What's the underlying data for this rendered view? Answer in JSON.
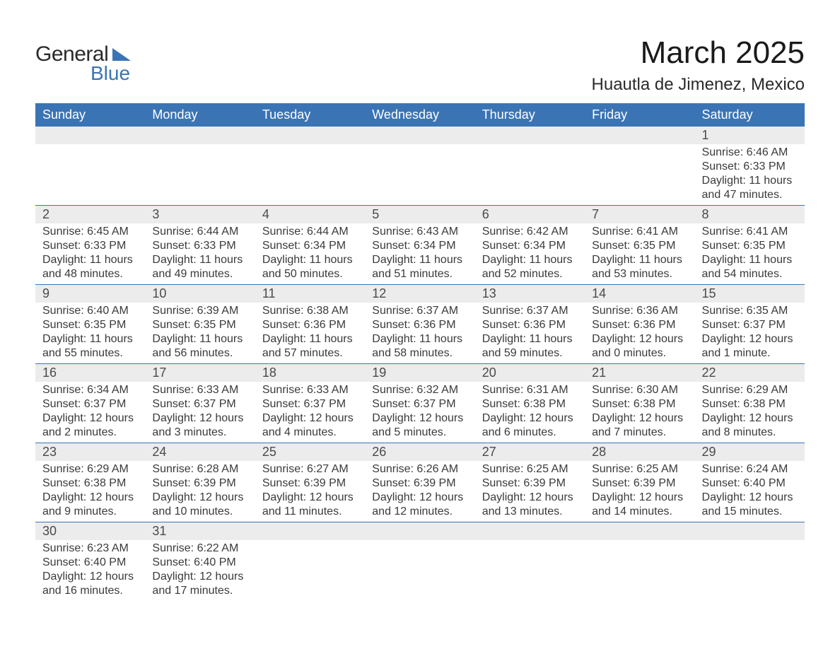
{
  "logo": {
    "text1": "General",
    "text2": "Blue"
  },
  "title": "March 2025",
  "location": "Huautla de Jimenez, Mexico",
  "colors": {
    "header_bg": "#3b74b5",
    "header_text": "#ffffff",
    "daynum_bg": "#ececec",
    "daynum_text": "#4a4a4a",
    "body_text": "#3a3a3a",
    "row_border": "#3b74b5",
    "page_bg": "#ffffff",
    "logo_dark": "#2a2a2a",
    "logo_blue": "#3b74b5"
  },
  "typography": {
    "title_fontsize": 44,
    "location_fontsize": 24,
    "header_fontsize": 18,
    "daynum_fontsize": 18,
    "body_fontsize": 16,
    "font_family": "Arial"
  },
  "day_headers": [
    "Sunday",
    "Monday",
    "Tuesday",
    "Wednesday",
    "Thursday",
    "Friday",
    "Saturday"
  ],
  "weeks": [
    {
      "nums": [
        "",
        "",
        "",
        "",
        "",
        "",
        "1"
      ],
      "cells": [
        null,
        null,
        null,
        null,
        null,
        null,
        {
          "sunrise": "Sunrise: 6:46 AM",
          "sunset": "Sunset: 6:33 PM",
          "day1": "Daylight: 11 hours",
          "day2": "and 47 minutes."
        }
      ]
    },
    {
      "nums": [
        "2",
        "3",
        "4",
        "5",
        "6",
        "7",
        "8"
      ],
      "cells": [
        {
          "sunrise": "Sunrise: 6:45 AM",
          "sunset": "Sunset: 6:33 PM",
          "day1": "Daylight: 11 hours",
          "day2": "and 48 minutes."
        },
        {
          "sunrise": "Sunrise: 6:44 AM",
          "sunset": "Sunset: 6:33 PM",
          "day1": "Daylight: 11 hours",
          "day2": "and 49 minutes."
        },
        {
          "sunrise": "Sunrise: 6:44 AM",
          "sunset": "Sunset: 6:34 PM",
          "day1": "Daylight: 11 hours",
          "day2": "and 50 minutes."
        },
        {
          "sunrise": "Sunrise: 6:43 AM",
          "sunset": "Sunset: 6:34 PM",
          "day1": "Daylight: 11 hours",
          "day2": "and 51 minutes."
        },
        {
          "sunrise": "Sunrise: 6:42 AM",
          "sunset": "Sunset: 6:34 PM",
          "day1": "Daylight: 11 hours",
          "day2": "and 52 minutes."
        },
        {
          "sunrise": "Sunrise: 6:41 AM",
          "sunset": "Sunset: 6:35 PM",
          "day1": "Daylight: 11 hours",
          "day2": "and 53 minutes."
        },
        {
          "sunrise": "Sunrise: 6:41 AM",
          "sunset": "Sunset: 6:35 PM",
          "day1": "Daylight: 11 hours",
          "day2": "and 54 minutes."
        }
      ]
    },
    {
      "nums": [
        "9",
        "10",
        "11",
        "12",
        "13",
        "14",
        "15"
      ],
      "cells": [
        {
          "sunrise": "Sunrise: 6:40 AM",
          "sunset": "Sunset: 6:35 PM",
          "day1": "Daylight: 11 hours",
          "day2": "and 55 minutes."
        },
        {
          "sunrise": "Sunrise: 6:39 AM",
          "sunset": "Sunset: 6:35 PM",
          "day1": "Daylight: 11 hours",
          "day2": "and 56 minutes."
        },
        {
          "sunrise": "Sunrise: 6:38 AM",
          "sunset": "Sunset: 6:36 PM",
          "day1": "Daylight: 11 hours",
          "day2": "and 57 minutes."
        },
        {
          "sunrise": "Sunrise: 6:37 AM",
          "sunset": "Sunset: 6:36 PM",
          "day1": "Daylight: 11 hours",
          "day2": "and 58 minutes."
        },
        {
          "sunrise": "Sunrise: 6:37 AM",
          "sunset": "Sunset: 6:36 PM",
          "day1": "Daylight: 11 hours",
          "day2": "and 59 minutes."
        },
        {
          "sunrise": "Sunrise: 6:36 AM",
          "sunset": "Sunset: 6:36 PM",
          "day1": "Daylight: 12 hours",
          "day2": "and 0 minutes."
        },
        {
          "sunrise": "Sunrise: 6:35 AM",
          "sunset": "Sunset: 6:37 PM",
          "day1": "Daylight: 12 hours",
          "day2": "and 1 minute."
        }
      ]
    },
    {
      "nums": [
        "16",
        "17",
        "18",
        "19",
        "20",
        "21",
        "22"
      ],
      "cells": [
        {
          "sunrise": "Sunrise: 6:34 AM",
          "sunset": "Sunset: 6:37 PM",
          "day1": "Daylight: 12 hours",
          "day2": "and 2 minutes."
        },
        {
          "sunrise": "Sunrise: 6:33 AM",
          "sunset": "Sunset: 6:37 PM",
          "day1": "Daylight: 12 hours",
          "day2": "and 3 minutes."
        },
        {
          "sunrise": "Sunrise: 6:33 AM",
          "sunset": "Sunset: 6:37 PM",
          "day1": "Daylight: 12 hours",
          "day2": "and 4 minutes."
        },
        {
          "sunrise": "Sunrise: 6:32 AM",
          "sunset": "Sunset: 6:37 PM",
          "day1": "Daylight: 12 hours",
          "day2": "and 5 minutes."
        },
        {
          "sunrise": "Sunrise: 6:31 AM",
          "sunset": "Sunset: 6:38 PM",
          "day1": "Daylight: 12 hours",
          "day2": "and 6 minutes."
        },
        {
          "sunrise": "Sunrise: 6:30 AM",
          "sunset": "Sunset: 6:38 PM",
          "day1": "Daylight: 12 hours",
          "day2": "and 7 minutes."
        },
        {
          "sunrise": "Sunrise: 6:29 AM",
          "sunset": "Sunset: 6:38 PM",
          "day1": "Daylight: 12 hours",
          "day2": "and 8 minutes."
        }
      ]
    },
    {
      "nums": [
        "23",
        "24",
        "25",
        "26",
        "27",
        "28",
        "29"
      ],
      "cells": [
        {
          "sunrise": "Sunrise: 6:29 AM",
          "sunset": "Sunset: 6:38 PM",
          "day1": "Daylight: 12 hours",
          "day2": "and 9 minutes."
        },
        {
          "sunrise": "Sunrise: 6:28 AM",
          "sunset": "Sunset: 6:39 PM",
          "day1": "Daylight: 12 hours",
          "day2": "and 10 minutes."
        },
        {
          "sunrise": "Sunrise: 6:27 AM",
          "sunset": "Sunset: 6:39 PM",
          "day1": "Daylight: 12 hours",
          "day2": "and 11 minutes."
        },
        {
          "sunrise": "Sunrise: 6:26 AM",
          "sunset": "Sunset: 6:39 PM",
          "day1": "Daylight: 12 hours",
          "day2": "and 12 minutes."
        },
        {
          "sunrise": "Sunrise: 6:25 AM",
          "sunset": "Sunset: 6:39 PM",
          "day1": "Daylight: 12 hours",
          "day2": "and 13 minutes."
        },
        {
          "sunrise": "Sunrise: 6:25 AM",
          "sunset": "Sunset: 6:39 PM",
          "day1": "Daylight: 12 hours",
          "day2": "and 14 minutes."
        },
        {
          "sunrise": "Sunrise: 6:24 AM",
          "sunset": "Sunset: 6:40 PM",
          "day1": "Daylight: 12 hours",
          "day2": "and 15 minutes."
        }
      ]
    },
    {
      "nums": [
        "30",
        "31",
        "",
        "",
        "",
        "",
        ""
      ],
      "cells": [
        {
          "sunrise": "Sunrise: 6:23 AM",
          "sunset": "Sunset: 6:40 PM",
          "day1": "Daylight: 12 hours",
          "day2": "and 16 minutes."
        },
        {
          "sunrise": "Sunrise: 6:22 AM",
          "sunset": "Sunset: 6:40 PM",
          "day1": "Daylight: 12 hours",
          "day2": "and 17 minutes."
        },
        null,
        null,
        null,
        null,
        null
      ]
    }
  ]
}
